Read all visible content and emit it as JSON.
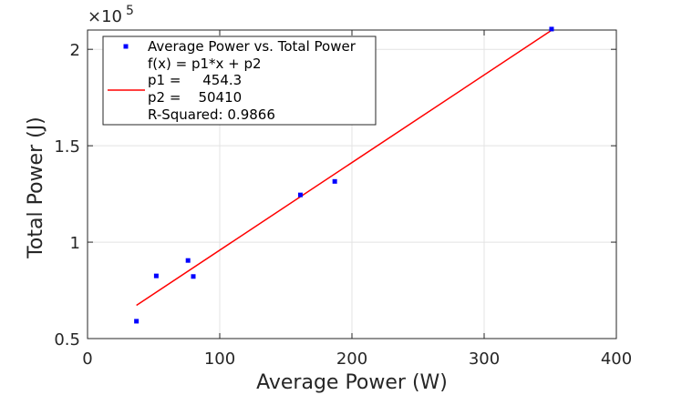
{
  "chart_data": {
    "type": "scatter",
    "xlabel": "Average Power (W)",
    "ylabel": "Total Power (J)",
    "xlim": [
      0,
      400
    ],
    "ylim": [
      0.5,
      2.1
    ],
    "y_exponent_label": "×10",
    "y_exponent_power": "5",
    "grid": true,
    "x_ticks": [
      "0",
      "100",
      "200",
      "300",
      "400"
    ],
    "y_ticks": [
      "0.5",
      "1",
      "1.5",
      "2"
    ],
    "x_tick_values": [
      0,
      100,
      200,
      300,
      400
    ],
    "y_tick_values": [
      0.5,
      1,
      1.5,
      2
    ],
    "series": [
      {
        "name": "Average Power vs. Total Power",
        "kind": "points",
        "color": "#0000ff",
        "x": [
          37,
          52,
          76,
          80,
          161,
          187,
          351
        ],
        "y": [
          0.59,
          0.825,
          0.905,
          0.822,
          1.245,
          1.315,
          2.105
        ]
      }
    ],
    "fit": {
      "color": "#ff0000",
      "p1": 454.3,
      "p2": 50410,
      "x_range": [
        37,
        351
      ]
    },
    "legend": {
      "placement": "top-left",
      "entries": [
        "Average Power vs. Total Power",
        "f(x) = p1*x + p2",
        "p1 =     454.3",
        "p2 =    50410",
        "R-Squared: 0.9866"
      ]
    }
  }
}
